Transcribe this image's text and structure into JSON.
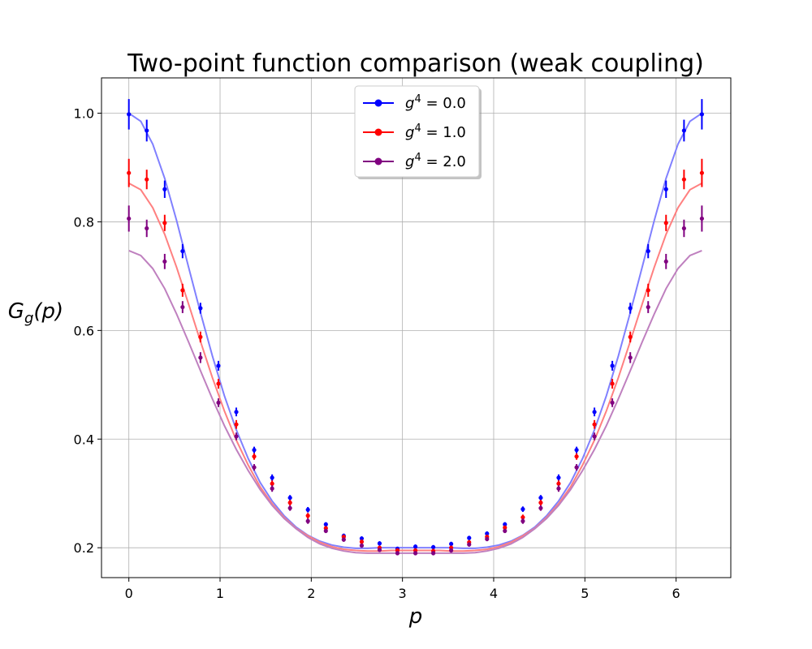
{
  "chart_data": {
    "type": "scatter",
    "title": "Two-point function comparison (weak coupling)",
    "xlabel": "p",
    "ylabel": "G_g(p)",
    "xlim": [
      -0.3,
      6.6
    ],
    "ylim": [
      0.145,
      1.065
    ],
    "xticks": [
      0,
      1,
      2,
      3,
      4,
      5,
      6
    ],
    "yticks": [
      0.2,
      0.4,
      0.6,
      0.8,
      1.0
    ],
    "xtick_labels": [
      "0",
      "1",
      "2",
      "3",
      "4",
      "5",
      "6"
    ],
    "ytick_labels": [
      "0.2",
      "0.4",
      "0.6",
      "0.8",
      "1.0"
    ],
    "grid": true,
    "legend_position": "top-center",
    "x": [
      0.0,
      0.196,
      0.393,
      0.589,
      0.785,
      0.982,
      1.178,
      1.374,
      1.571,
      1.767,
      1.963,
      2.16,
      2.356,
      2.553,
      2.749,
      2.945,
      3.142,
      3.338,
      3.534,
      3.731,
      3.927,
      4.123,
      4.32,
      4.516,
      4.712,
      4.909,
      5.105,
      5.301,
      5.498,
      5.694,
      5.89,
      6.087,
      6.283
    ],
    "curve_x": [
      0.0,
      0.131,
      0.262,
      0.393,
      0.524,
      0.654,
      0.785,
      0.916,
      1.047,
      1.178,
      1.309,
      1.44,
      1.571,
      1.702,
      1.833,
      1.963,
      2.094,
      2.225,
      2.356,
      2.487,
      2.618,
      2.749,
      2.88,
      3.011,
      3.142,
      3.272,
      3.403,
      3.534,
      3.665,
      3.796,
      3.927,
      4.058,
      4.189,
      4.32,
      4.451,
      4.581,
      4.712,
      4.843,
      4.974,
      5.105,
      5.236,
      5.367,
      5.498,
      5.629,
      5.76,
      5.89,
      6.021,
      6.152,
      6.283
    ],
    "series": [
      {
        "name": "g^4 = 0.0",
        "color": "#0000ff",
        "curve_color": "#8080ff",
        "values": [
          0.998,
          0.968,
          0.86,
          0.746,
          0.641,
          0.535,
          0.45,
          0.38,
          0.329,
          0.292,
          0.27,
          0.243,
          0.222,
          0.217,
          0.208,
          0.198,
          0.202,
          0.201,
          0.207,
          0.218,
          0.226,
          0.243,
          0.271,
          0.292,
          0.329,
          0.38,
          0.45,
          0.535,
          0.641,
          0.746,
          0.86,
          0.968,
          0.998
        ],
        "errors": [
          0.028,
          0.02,
          0.016,
          0.013,
          0.01,
          0.009,
          0.008,
          0.006,
          0.006,
          0.005,
          0.005,
          0.004,
          0.004,
          0.004,
          0.004,
          0.004,
          0.004,
          0.004,
          0.004,
          0.004,
          0.004,
          0.004,
          0.005,
          0.005,
          0.006,
          0.006,
          0.008,
          0.009,
          0.01,
          0.013,
          0.016,
          0.02,
          0.028
        ],
        "curve": [
          1.0,
          0.985,
          0.943,
          0.88,
          0.802,
          0.717,
          0.633,
          0.553,
          0.48,
          0.417,
          0.364,
          0.32,
          0.286,
          0.259,
          0.238,
          0.223,
          0.212,
          0.205,
          0.201,
          0.199,
          0.199,
          0.2,
          0.2,
          0.2,
          0.2,
          0.2,
          0.2,
          0.2,
          0.199,
          0.199,
          0.201,
          0.205,
          0.212,
          0.223,
          0.238,
          0.259,
          0.286,
          0.32,
          0.364,
          0.417,
          0.48,
          0.553,
          0.633,
          0.717,
          0.802,
          0.88,
          0.943,
          0.985,
          1.0
        ]
      },
      {
        "name": "g^4 = 1.0",
        "color": "#ff0000",
        "curve_color": "#ff8080",
        "values": [
          0.89,
          0.878,
          0.798,
          0.674,
          0.588,
          0.502,
          0.427,
          0.368,
          0.318,
          0.283,
          0.259,
          0.236,
          0.22,
          0.211,
          0.2,
          0.195,
          0.195,
          0.194,
          0.2,
          0.21,
          0.22,
          0.237,
          0.256,
          0.283,
          0.318,
          0.368,
          0.427,
          0.502,
          0.588,
          0.674,
          0.798,
          0.878,
          0.89
        ],
        "errors": [
          0.026,
          0.018,
          0.015,
          0.012,
          0.01,
          0.009,
          0.008,
          0.006,
          0.006,
          0.005,
          0.005,
          0.004,
          0.004,
          0.004,
          0.004,
          0.004,
          0.004,
          0.004,
          0.004,
          0.004,
          0.004,
          0.004,
          0.005,
          0.005,
          0.006,
          0.006,
          0.008,
          0.009,
          0.01,
          0.012,
          0.015,
          0.018,
          0.026
        ],
        "curve": [
          0.871,
          0.859,
          0.826,
          0.777,
          0.716,
          0.649,
          0.58,
          0.513,
          0.452,
          0.398,
          0.352,
          0.312,
          0.281,
          0.256,
          0.236,
          0.222,
          0.21,
          0.202,
          0.197,
          0.195,
          0.194,
          0.194,
          0.195,
          0.195,
          0.195,
          0.195,
          0.195,
          0.194,
          0.194,
          0.195,
          0.197,
          0.202,
          0.21,
          0.222,
          0.236,
          0.256,
          0.281,
          0.312,
          0.352,
          0.398,
          0.452,
          0.513,
          0.58,
          0.649,
          0.716,
          0.777,
          0.826,
          0.859,
          0.871
        ]
      },
      {
        "name": "g^4 = 2.0",
        "color": "#800080",
        "curve_color": "#bf80bf",
        "values": [
          0.806,
          0.788,
          0.727,
          0.643,
          0.55,
          0.467,
          0.405,
          0.348,
          0.309,
          0.273,
          0.249,
          0.231,
          0.215,
          0.204,
          0.196,
          0.19,
          0.19,
          0.19,
          0.195,
          0.206,
          0.216,
          0.231,
          0.249,
          0.273,
          0.309,
          0.348,
          0.405,
          0.467,
          0.55,
          0.643,
          0.727,
          0.788,
          0.806
        ],
        "errors": [
          0.024,
          0.016,
          0.014,
          0.011,
          0.01,
          0.008,
          0.007,
          0.006,
          0.006,
          0.005,
          0.005,
          0.004,
          0.004,
          0.004,
          0.004,
          0.004,
          0.004,
          0.004,
          0.004,
          0.004,
          0.004,
          0.004,
          0.005,
          0.005,
          0.006,
          0.006,
          0.007,
          0.008,
          0.01,
          0.011,
          0.014,
          0.016,
          0.024
        ],
        "curve": [
          0.747,
          0.738,
          0.714,
          0.677,
          0.63,
          0.579,
          0.526,
          0.474,
          0.425,
          0.381,
          0.342,
          0.307,
          0.278,
          0.254,
          0.235,
          0.219,
          0.207,
          0.199,
          0.194,
          0.191,
          0.19,
          0.19,
          0.19,
          0.19,
          0.19,
          0.19,
          0.19,
          0.19,
          0.19,
          0.191,
          0.194,
          0.199,
          0.207,
          0.219,
          0.235,
          0.254,
          0.278,
          0.307,
          0.342,
          0.381,
          0.425,
          0.474,
          0.526,
          0.579,
          0.63,
          0.677,
          0.714,
          0.738,
          0.747
        ]
      }
    ]
  }
}
